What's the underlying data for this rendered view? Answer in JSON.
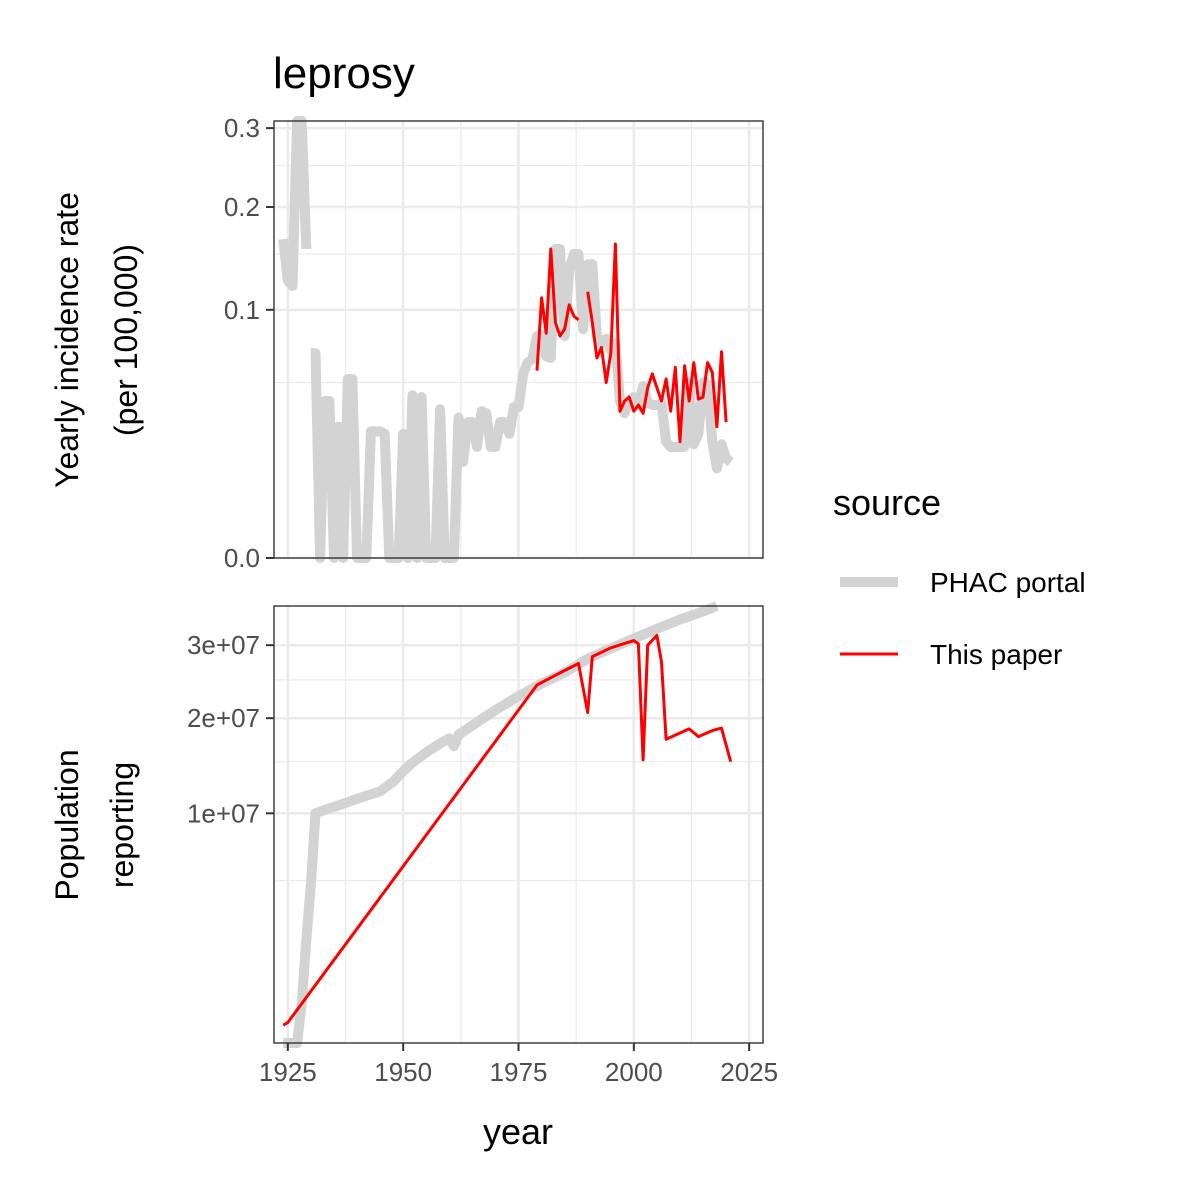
{
  "chart_data": {
    "type": "line",
    "title": "leprosy",
    "xlabel": "year",
    "x_ticks": [
      "1925",
      "1950",
      "1975",
      "2000",
      "2025"
    ],
    "x_tick_values": [
      1925,
      1950,
      1975,
      2000,
      2025
    ],
    "xlim": [
      1922,
      2028
    ],
    "legend": {
      "title": "source",
      "position": "right",
      "entries": [
        {
          "label": "PHAC portal",
          "color": "#d3d3d3"
        },
        {
          "label": "This paper",
          "color": "#ff0000"
        }
      ]
    },
    "panels": [
      {
        "ylabel_lines": [
          "Yearly incidence rate",
          "(per 100,000)"
        ],
        "scale": "sqrt",
        "ylim": [
          0,
          0.31
        ],
        "y_ticks": [
          "0.0",
          "0.1",
          "0.2",
          "0.3"
        ],
        "y_tick_values": [
          0,
          0.1,
          0.2,
          0.3
        ],
        "series": [
          {
            "name": "PHAC portal",
            "color": "#d3d3d3",
            "segments": [
              [
                [
                  1924,
                  0.165
                ],
                [
                  1925,
                  0.125
                ],
                [
                  1926,
                  0.12
                ],
                [
                  1927,
                  0.31
                ],
                [
                  1928,
                  0.31
                ],
                [
                  1929,
                  0.155
                ]
              ],
              [
                [
                  1930,
                  0.068
                ],
                [
                  1931,
                  0.068
                ],
                [
                  1932,
                  0.0
                ],
                [
                  1933,
                  0.04
                ],
                [
                  1934,
                  0.04
                ],
                [
                  1935,
                  0.0
                ],
                [
                  1936,
                  0.028
                ],
                [
                  1937,
                  0.0
                ],
                [
                  1938,
                  0.052
                ],
                [
                  1939,
                  0.052
                ],
                [
                  1940,
                  0.0
                ],
                [
                  1941,
                  0.0
                ],
                [
                  1942,
                  0.0
                ],
                [
                  1943,
                  0.026
                ],
                [
                  1944,
                  0.026
                ],
                [
                  1945,
                  0.026
                ],
                [
                  1946,
                  0.025
                ],
                [
                  1947,
                  0.0
                ],
                [
                  1948,
                  0.0
                ],
                [
                  1949,
                  0.0
                ],
                [
                  1950,
                  0.025
                ],
                [
                  1951,
                  0.0
                ],
                [
                  1952,
                  0.043
                ],
                [
                  1953,
                  0.0
                ],
                [
                  1954,
                  0.042
                ],
                [
                  1955,
                  0.0
                ],
                [
                  1956,
                  0.0
                ],
                [
                  1957,
                  0.0
                ],
                [
                  1958,
                  0.036
                ],
                [
                  1959,
                  0.0
                ],
                [
                  1960,
                  0.0
                ],
                [
                  1961,
                  0.0
                ],
                [
                  1962,
                  0.032
                ],
                [
                  1963,
                  0.015
                ],
                [
                  1964,
                  0.03
                ],
                [
                  1965,
                  0.03
                ],
                [
                  1966,
                  0.02
                ],
                [
                  1967,
                  0.035
                ],
                [
                  1968,
                  0.034
                ],
                [
                  1969,
                  0.02
                ],
                [
                  1970,
                  0.02
                ],
                [
                  1971,
                  0.03
                ],
                [
                  1972,
                  0.03
                ],
                [
                  1973,
                  0.025
                ],
                [
                  1974,
                  0.037
                ],
                [
                  1975,
                  0.037
                ],
                [
                  1976,
                  0.055
                ],
                [
                  1977,
                  0.062
                ],
                [
                  1978,
                  0.064
                ],
                [
                  1979,
                  0.08
                ],
                [
                  1980,
                  0.081
                ],
                [
                  1981,
                  0.066
                ],
                [
                  1982,
                  0.065
                ],
                [
                  1983,
                  0.155
                ],
                [
                  1984,
                  0.155
                ],
                [
                  1985,
                  0.08
                ],
                [
                  1986,
                  0.135
                ],
                [
                  1987,
                  0.15
                ],
                [
                  1988,
                  0.15
                ],
                [
                  1989,
                  0.085
                ],
                [
                  1990,
                  0.14
                ],
                [
                  1991,
                  0.14
                ],
                [
                  1992,
                  0.08
                ],
                [
                  1993,
                  0.075
                ],
                [
                  1994,
                  0.078
                ],
                [
                  1995,
                  0.07
                ],
                [
                  1996,
                  0.075
                ],
                [
                  1997,
                  0.04
                ],
                [
                  1998,
                  0.034
                ],
                [
                  1999,
                  0.04
                ],
                [
                  2000,
                  0.042
                ],
                [
                  2001,
                  0.038
                ],
                [
                  2002,
                  0.048
                ],
                [
                  2003,
                  0.039
                ],
                [
                  2004,
                  0.038
                ],
                [
                  2005,
                  0.038
                ],
                [
                  2006,
                  0.039
                ],
                [
                  2007,
                  0.022
                ],
                [
                  2008,
                  0.02
                ],
                [
                  2009,
                  0.02
                ],
                [
                  2010,
                  0.02
                ],
                [
                  2011,
                  0.02
                ],
                [
                  2012,
                  0.05
                ],
                [
                  2013,
                  0.021
                ],
                [
                  2014,
                  0.025
                ],
                [
                  2015,
                  0.05
                ],
                [
                  2016,
                  0.049
                ],
                [
                  2017,
                  0.022
                ],
                [
                  2018,
                  0.013
                ],
                [
                  2019,
                  0.021
                ],
                [
                  2020,
                  0.016
                ],
                [
                  2021,
                  0.015
                ]
              ]
            ]
          },
          {
            "name": "This paper",
            "color": "#ff0000",
            "segments": [
              [
                [
                  1979,
                  0.057
                ],
                [
                  1980,
                  0.11
                ],
                [
                  1981,
                  0.082
                ],
                [
                  1982,
                  0.155
                ],
                [
                  1983,
                  0.09
                ],
                [
                  1984,
                  0.08
                ],
                [
                  1985,
                  0.085
                ],
                [
                  1986,
                  0.104
                ],
                [
                  1987,
                  0.095
                ],
                [
                  1988,
                  0.092
                ]
              ],
              [
                [
                  1990,
                  0.115
                ],
                [
                  1991,
                  0.09
                ],
                [
                  1992,
                  0.065
                ],
                [
                  1993,
                  0.072
                ],
                [
                  1994,
                  0.05
                ],
                [
                  1995,
                  0.068
                ],
                [
                  1996,
                  0.16
                ],
                [
                  1997,
                  0.035
                ],
                [
                  1998,
                  0.04
                ],
                [
                  1999,
                  0.042
                ],
                [
                  2000,
                  0.035
                ],
                [
                  2001,
                  0.038
                ],
                [
                  2002,
                  0.034
                ],
                [
                  2003,
                  0.047
                ],
                [
                  2004,
                  0.055
                ],
                [
                  2005,
                  0.047
                ],
                [
                  2006,
                  0.04
                ],
                [
                  2007,
                  0.052
                ],
                [
                  2008,
                  0.035
                ],
                [
                  2009,
                  0.059
                ],
                [
                  2010,
                  0.022
                ],
                [
                  2011,
                  0.06
                ],
                [
                  2012,
                  0.04
                ],
                [
                  2013,
                  0.062
                ],
                [
                  2014,
                  0.041
                ],
                [
                  2015,
                  0.042
                ],
                [
                  2016,
                  0.062
                ],
                [
                  2017,
                  0.056
                ],
                [
                  2018,
                  0.028
                ],
                [
                  2019,
                  0.069
                ],
                [
                  2020,
                  0.03
                ]
              ]
            ]
          }
        ]
      },
      {
        "ylabel_lines": [
          "Population",
          "reporting"
        ],
        "scale": "sqrt",
        "ylim": [
          0,
          36200000
        ],
        "y_ticks": [
          "1e+07",
          "2e+07",
          "3e+07"
        ],
        "y_tick_values": [
          10000000,
          20000000,
          30000000
        ],
        "series": [
          {
            "name": "PHAC portal",
            "color": "#d3d3d3",
            "segments": [
              [
                [
                  1924,
                  0
                ],
                [
                  1927,
                  0
                ],
                [
                  1928,
                  300000
                ],
                [
                  1929,
                  2000000
                ],
                [
                  1930,
                  4800000
                ],
                [
                  1931,
                  10000000
                ],
                [
                  1933,
                  10300000
                ],
                [
                  1936,
                  10700000
                ],
                [
                  1940,
                  11300000
                ],
                [
                  1945,
                  12000000
                ],
                [
                  1948,
                  13000000
                ],
                [
                  1950,
                  14000000
                ],
                [
                  1952,
                  14900000
                ],
                [
                  1955,
                  16000000
                ],
                [
                  1958,
                  17000000
                ],
                [
                  1960,
                  17600000
                ],
                [
                  1961,
                  16700000
                ],
                [
                  1962,
                  18000000
                ],
                [
                  1966,
                  19500000
                ],
                [
                  1970,
                  21000000
                ],
                [
                  1975,
                  22800000
                ],
                [
                  1980,
                  24500000
                ],
                [
                  1985,
                  26000000
                ],
                [
                  1990,
                  28000000
                ],
                [
                  1995,
                  29500000
                ],
                [
                  2000,
                  31000000
                ],
                [
                  2005,
                  32500000
                ],
                [
                  2010,
                  34000000
                ],
                [
                  2015,
                  35300000
                ],
                [
                  2018,
                  36300000
                ]
              ]
            ]
          },
          {
            "name": "This paper",
            "color": "#ff0000",
            "segments": [
              [
                [
                  1924,
                  60000
                ],
                [
                  1925,
                  80000
                ],
                [
                  1979,
                  24300000
                ],
                [
                  1982,
                  25300000
                ],
                [
                  1985,
                  26300000
                ],
                [
                  1988,
                  27300000
                ],
                [
                  1990,
                  20700000
                ],
                [
                  1991,
                  28300000
                ],
                [
                  1995,
                  29600000
                ],
                [
                  2000,
                  30700000
                ],
                [
                  2001,
                  30200000
                ],
                [
                  2002,
                  15200000
                ],
                [
                  2003,
                  30000000
                ],
                [
                  2005,
                  31500000
                ],
                [
                  2006,
                  27500000
                ],
                [
                  2007,
                  17500000
                ],
                [
                  2012,
                  18700000
                ],
                [
                  2014,
                  17800000
                ],
                [
                  2017,
                  18500000
                ],
                [
                  2019,
                  18800000
                ],
                [
                  2021,
                  15000000
                ]
              ]
            ]
          }
        ]
      }
    ]
  }
}
